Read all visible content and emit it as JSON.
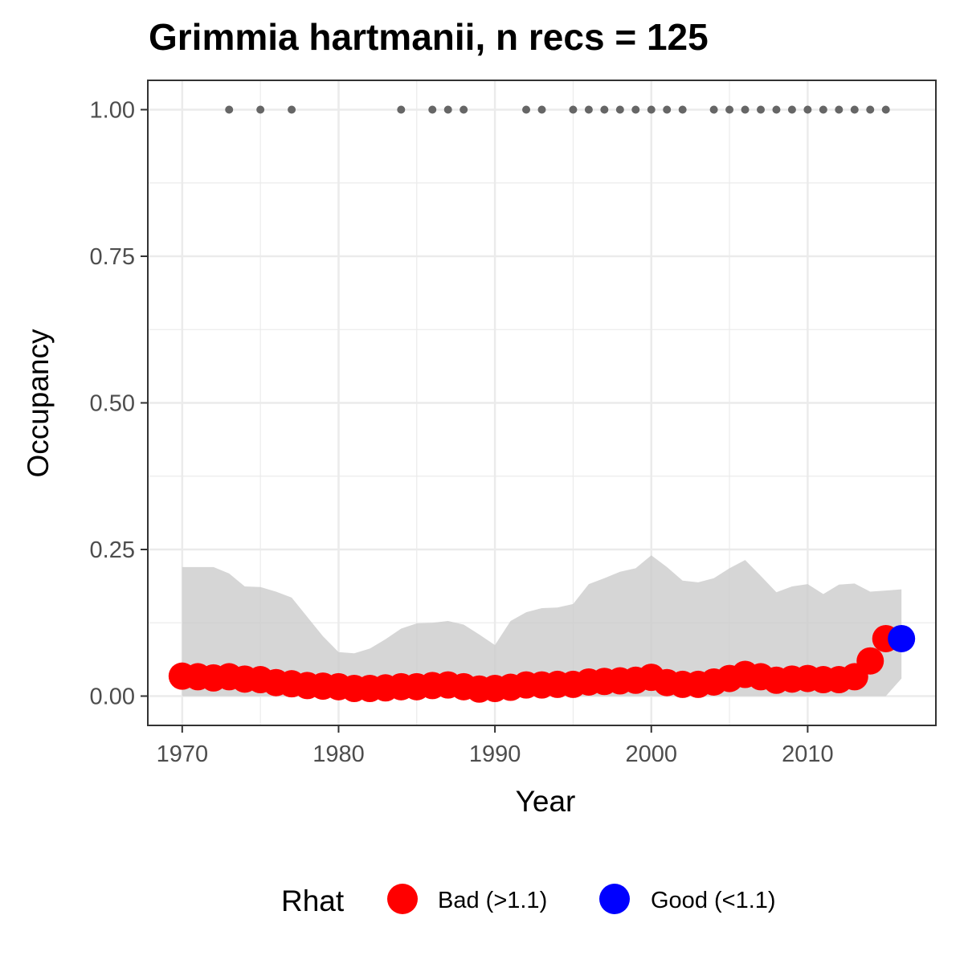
{
  "chart_data": {
    "type": "line",
    "title": "Grimmia hartmanii, n recs = 125",
    "xlabel": "Year",
    "ylabel": "Occupancy",
    "xlim": [
      1967.8,
      2018.2
    ],
    "ylim": [
      -0.05,
      1.05
    ],
    "x_ticks": [
      1970,
      1980,
      1990,
      2000,
      2010
    ],
    "y_ticks": [
      0.0,
      0.25,
      0.5,
      0.75,
      1.0
    ],
    "y_tick_labels": [
      "0.00",
      "0.25",
      "0.50",
      "0.75",
      "1.00"
    ],
    "grid": true,
    "legend": {
      "title": "Rhat",
      "position": "bottom",
      "entries": [
        {
          "label": "Bad (>1.1)",
          "color": "#ff0000"
        },
        {
          "label": "Good (<1.1)",
          "color": "#0000ff"
        }
      ]
    },
    "records_at_y": 1.0,
    "record_years": [
      1973,
      1975,
      1977,
      1984,
      1986,
      1987,
      1988,
      1992,
      1993,
      1995,
      1996,
      1997,
      1998,
      1999,
      2000,
      2001,
      2002,
      2004,
      2005,
      2006,
      2007,
      2008,
      2009,
      2010,
      2011,
      2012,
      2013,
      2014,
      2015
    ],
    "series": [
      {
        "name": "Occupancy",
        "x": [
          1970,
          1971,
          1972,
          1973,
          1974,
          1975,
          1976,
          1977,
          1978,
          1979,
          1980,
          1981,
          1982,
          1983,
          1984,
          1985,
          1986,
          1987,
          1988,
          1989,
          1990,
          1991,
          1992,
          1993,
          1994,
          1995,
          1996,
          1997,
          1998,
          1999,
          2000,
          2001,
          2002,
          2003,
          2004,
          2005,
          2006,
          2007,
          2008,
          2009,
          2010,
          2011,
          2012,
          2013,
          2014,
          2015,
          2016
        ],
        "values": [
          0.034,
          0.033,
          0.031,
          0.033,
          0.029,
          0.028,
          0.023,
          0.021,
          0.018,
          0.017,
          0.016,
          0.013,
          0.013,
          0.014,
          0.016,
          0.016,
          0.018,
          0.019,
          0.016,
          0.012,
          0.013,
          0.015,
          0.019,
          0.019,
          0.02,
          0.02,
          0.024,
          0.025,
          0.026,
          0.027,
          0.032,
          0.023,
          0.02,
          0.02,
          0.024,
          0.03,
          0.037,
          0.033,
          0.027,
          0.029,
          0.03,
          0.028,
          0.028,
          0.033,
          0.06,
          0.098,
          0.098
        ],
        "lower": [
          0.0,
          0.0,
          0.0,
          0.0,
          0.0,
          0.0,
          0.0,
          0.0,
          0.0,
          0.0,
          0.0,
          0.0,
          0.0,
          0.0,
          0.0,
          0.0,
          0.0,
          0.0,
          0.0,
          0.0,
          0.0,
          0.0,
          0.0,
          0.0,
          0.0,
          0.0,
          0.0,
          0.0,
          0.0,
          0.0,
          0.0,
          0.0,
          0.0,
          0.0,
          0.0,
          0.0,
          0.0,
          0.0,
          0.0,
          0.0,
          0.0,
          0.0,
          0.0,
          0.0,
          0.0,
          0.0,
          0.03
        ],
        "upper": [
          0.22,
          0.22,
          0.22,
          0.209,
          0.187,
          0.186,
          0.178,
          0.168,
          0.135,
          0.102,
          0.075,
          0.073,
          0.081,
          0.097,
          0.115,
          0.124,
          0.125,
          0.128,
          0.122,
          0.105,
          0.087,
          0.128,
          0.143,
          0.15,
          0.151,
          0.157,
          0.191,
          0.201,
          0.212,
          0.218,
          0.24,
          0.22,
          0.197,
          0.194,
          0.201,
          0.218,
          0.232,
          0.205,
          0.177,
          0.187,
          0.191,
          0.174,
          0.19,
          0.192,
          0.178,
          0.18,
          0.182
        ],
        "rhat_status": [
          "Bad (>1.1)",
          "Bad (>1.1)",
          "Bad (>1.1)",
          "Bad (>1.1)",
          "Bad (>1.1)",
          "Bad (>1.1)",
          "Bad (>1.1)",
          "Bad (>1.1)",
          "Bad (>1.1)",
          "Bad (>1.1)",
          "Bad (>1.1)",
          "Bad (>1.1)",
          "Bad (>1.1)",
          "Bad (>1.1)",
          "Bad (>1.1)",
          "Bad (>1.1)",
          "Bad (>1.1)",
          "Bad (>1.1)",
          "Bad (>1.1)",
          "Bad (>1.1)",
          "Bad (>1.1)",
          "Bad (>1.1)",
          "Bad (>1.1)",
          "Bad (>1.1)",
          "Bad (>1.1)",
          "Bad (>1.1)",
          "Bad (>1.1)",
          "Bad (>1.1)",
          "Bad (>1.1)",
          "Bad (>1.1)",
          "Bad (>1.1)",
          "Bad (>1.1)",
          "Bad (>1.1)",
          "Bad (>1.1)",
          "Bad (>1.1)",
          "Bad (>1.1)",
          "Bad (>1.1)",
          "Bad (>1.1)",
          "Bad (>1.1)",
          "Bad (>1.1)",
          "Bad (>1.1)",
          "Bad (>1.1)",
          "Bad (>1.1)",
          "Bad (>1.1)",
          "Bad (>1.1)",
          "Bad (>1.1)",
          "Good (<1.1)"
        ]
      }
    ],
    "colors": {
      "bad": "#ff0000",
      "good": "#0000ff",
      "ribbon": "#cccccc",
      "record_dot": "#666666",
      "grid": "#ebebeb",
      "panel_border": "#333333"
    }
  }
}
